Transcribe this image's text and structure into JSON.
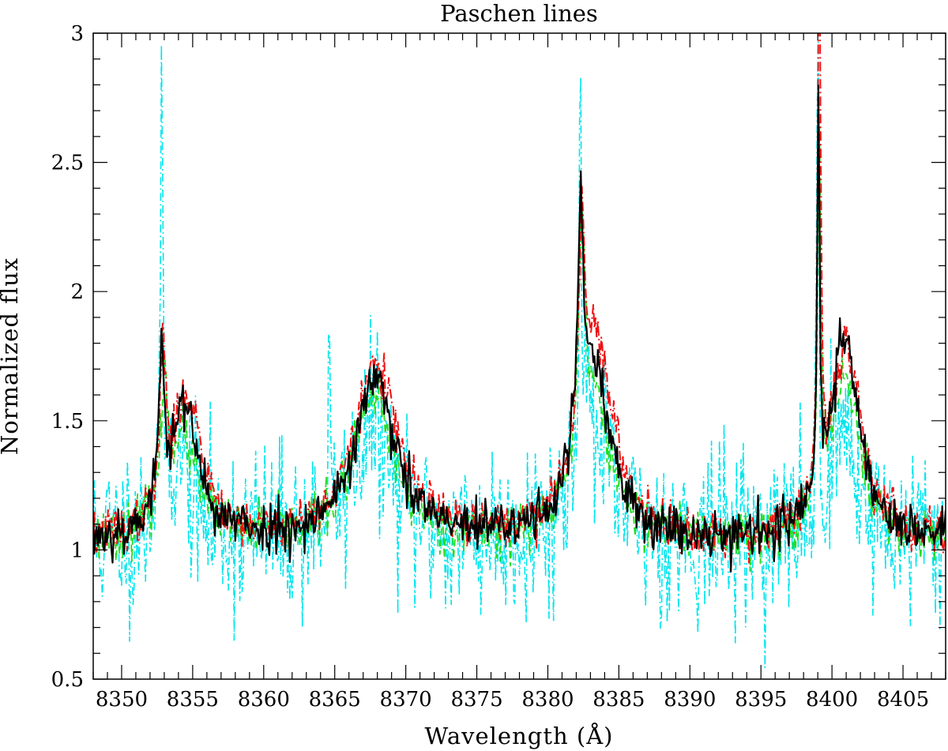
{
  "chart_data": {
    "type": "line",
    "title": "Paschen lines",
    "xlabel": "Wavelength (Å)",
    "ylabel": "Normalized flux",
    "xlim": [
      8348,
      8408
    ],
    "ylim": [
      0.5,
      3
    ],
    "x_ticks_major": [
      8350,
      8355,
      8360,
      8365,
      8370,
      8375,
      8380,
      8385,
      8390,
      8395,
      8400,
      8405
    ],
    "x_ticks_minor_step": 1,
    "y_ticks_major": [
      0.5,
      1,
      1.5,
      2,
      2.5,
      3
    ],
    "y_ticks_minor_step": 0.1,
    "grid": false,
    "legend": "none",
    "continuum": 1.03,
    "series": [
      {
        "color": "#00e5ee",
        "dash": "10,4,2,4",
        "width": 1.6,
        "noise": 0.17,
        "seed": 11,
        "lines": [
          {
            "center": 8352.8,
            "amp": 1.35,
            "width": 0.12
          },
          {
            "center": 8353.9,
            "amp": 0.32,
            "width": 1.2
          },
          {
            "center": 8364.6,
            "amp": 0.55,
            "width": 0.08
          },
          {
            "center": 8367.6,
            "amp": 0.45,
            "width": 1.6
          },
          {
            "center": 8382.3,
            "amp": 1.5,
            "width": 0.12
          },
          {
            "center": 8383.0,
            "amp": 0.45,
            "width": 1.4
          },
          {
            "center": 8399.0,
            "amp": 2.0,
            "width": 0.08
          },
          {
            "center": 8400.8,
            "amp": 0.45,
            "width": 1.1
          }
        ]
      },
      {
        "color": "#22dd22",
        "dash": "9,5",
        "width": 1.8,
        "noise": 0.05,
        "seed": 23,
        "lines": [
          {
            "center": 8353.0,
            "amp": 0.45,
            "width": 0.25
          },
          {
            "center": 8354.2,
            "amp": 0.4,
            "width": 1.3
          },
          {
            "center": 8367.7,
            "amp": 0.55,
            "width": 1.7
          },
          {
            "center": 8382.4,
            "amp": 0.85,
            "width": 0.25
          },
          {
            "center": 8383.1,
            "amp": 0.55,
            "width": 1.5
          },
          {
            "center": 8399.1,
            "amp": 1.45,
            "width": 0.12
          },
          {
            "center": 8400.9,
            "amp": 0.65,
            "width": 1.2
          }
        ]
      },
      {
        "color": "#ee1111",
        "dash": "12,4,2,4",
        "width": 2.0,
        "noise": 0.045,
        "seed": 37,
        "lines": [
          {
            "center": 8352.9,
            "amp": 0.62,
            "width": 0.22
          },
          {
            "center": 8354.6,
            "amp": 0.55,
            "width": 1.3
          },
          {
            "center": 8367.9,
            "amp": 0.68,
            "width": 1.8
          },
          {
            "center": 8382.4,
            "amp": 0.75,
            "width": 0.25
          },
          {
            "center": 8383.3,
            "amp": 0.78,
            "width": 1.5
          },
          {
            "center": 8399.1,
            "amp": 2.15,
            "width": 0.12
          },
          {
            "center": 8401.0,
            "amp": 0.75,
            "width": 1.3
          }
        ]
      },
      {
        "color": "#000000",
        "dash": "",
        "width": 2.2,
        "noise": 0.05,
        "seed": 53,
        "lines": [
          {
            "center": 8352.8,
            "amp": 0.58,
            "width": 0.2
          },
          {
            "center": 8354.3,
            "amp": 0.52,
            "width": 1.25
          },
          {
            "center": 8367.8,
            "amp": 0.62,
            "width": 1.7
          },
          {
            "center": 8382.3,
            "amp": 0.82,
            "width": 0.22
          },
          {
            "center": 8383.1,
            "amp": 0.68,
            "width": 1.45
          },
          {
            "center": 8399.05,
            "amp": 1.55,
            "width": 0.1
          },
          {
            "center": 8400.9,
            "amp": 0.8,
            "width": 1.2
          }
        ]
      }
    ]
  }
}
